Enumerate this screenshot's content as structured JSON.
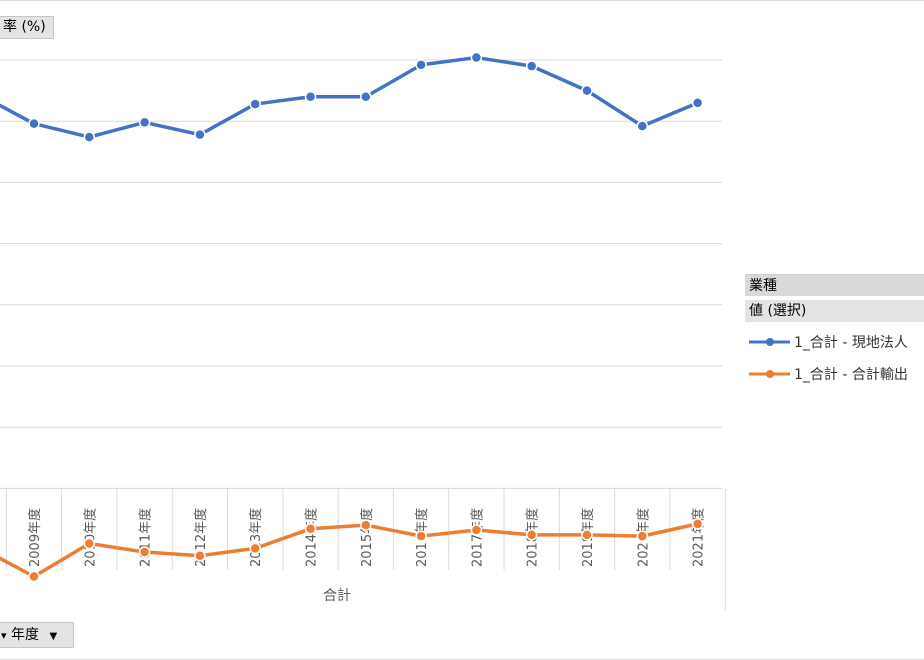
{
  "ylabel_button": {
    "label": "率 (%)"
  },
  "bottom_field_button": {
    "label": "年度"
  },
  "legend": {
    "field_header": "業種",
    "values_header": "値 (選択)",
    "items": [
      {
        "label": "1_合計 - 現地法人"
      },
      {
        "label": "1_合計 - 合計輸出"
      }
    ]
  },
  "chart_data": {
    "type": "line",
    "categories": [
      "2009年度",
      "2010年度",
      "2011年度",
      "2012年度",
      "2013年度",
      "2014年度",
      "2015年度",
      "2016年度",
      "2017年度",
      "2018年度",
      "2019年度",
      "2020年度",
      "2021年度"
    ],
    "xlabel": "合計",
    "ylabel": "率 (%)",
    "grid": true,
    "colors": [
      "#4472c4",
      "#ed7d31"
    ],
    "series": [
      {
        "name": "1_合計 - 現地法人",
        "start_value": 2.15,
        "values": [
          1.98,
          1.87,
          1.99,
          1.89,
          2.14,
          2.2,
          2.2,
          2.46,
          2.52,
          2.45,
          2.25,
          1.96,
          2.15
        ]
      },
      {
        "name": "1_合計 - 合計輸出",
        "start_value": -1.55,
        "values": [
          -1.72,
          -1.45,
          -1.52,
          -1.55,
          -1.49,
          -1.33,
          -1.3,
          -1.39,
          -1.34,
          -1.38,
          -1.38,
          -1.39,
          -1.29
        ]
      }
    ]
  }
}
